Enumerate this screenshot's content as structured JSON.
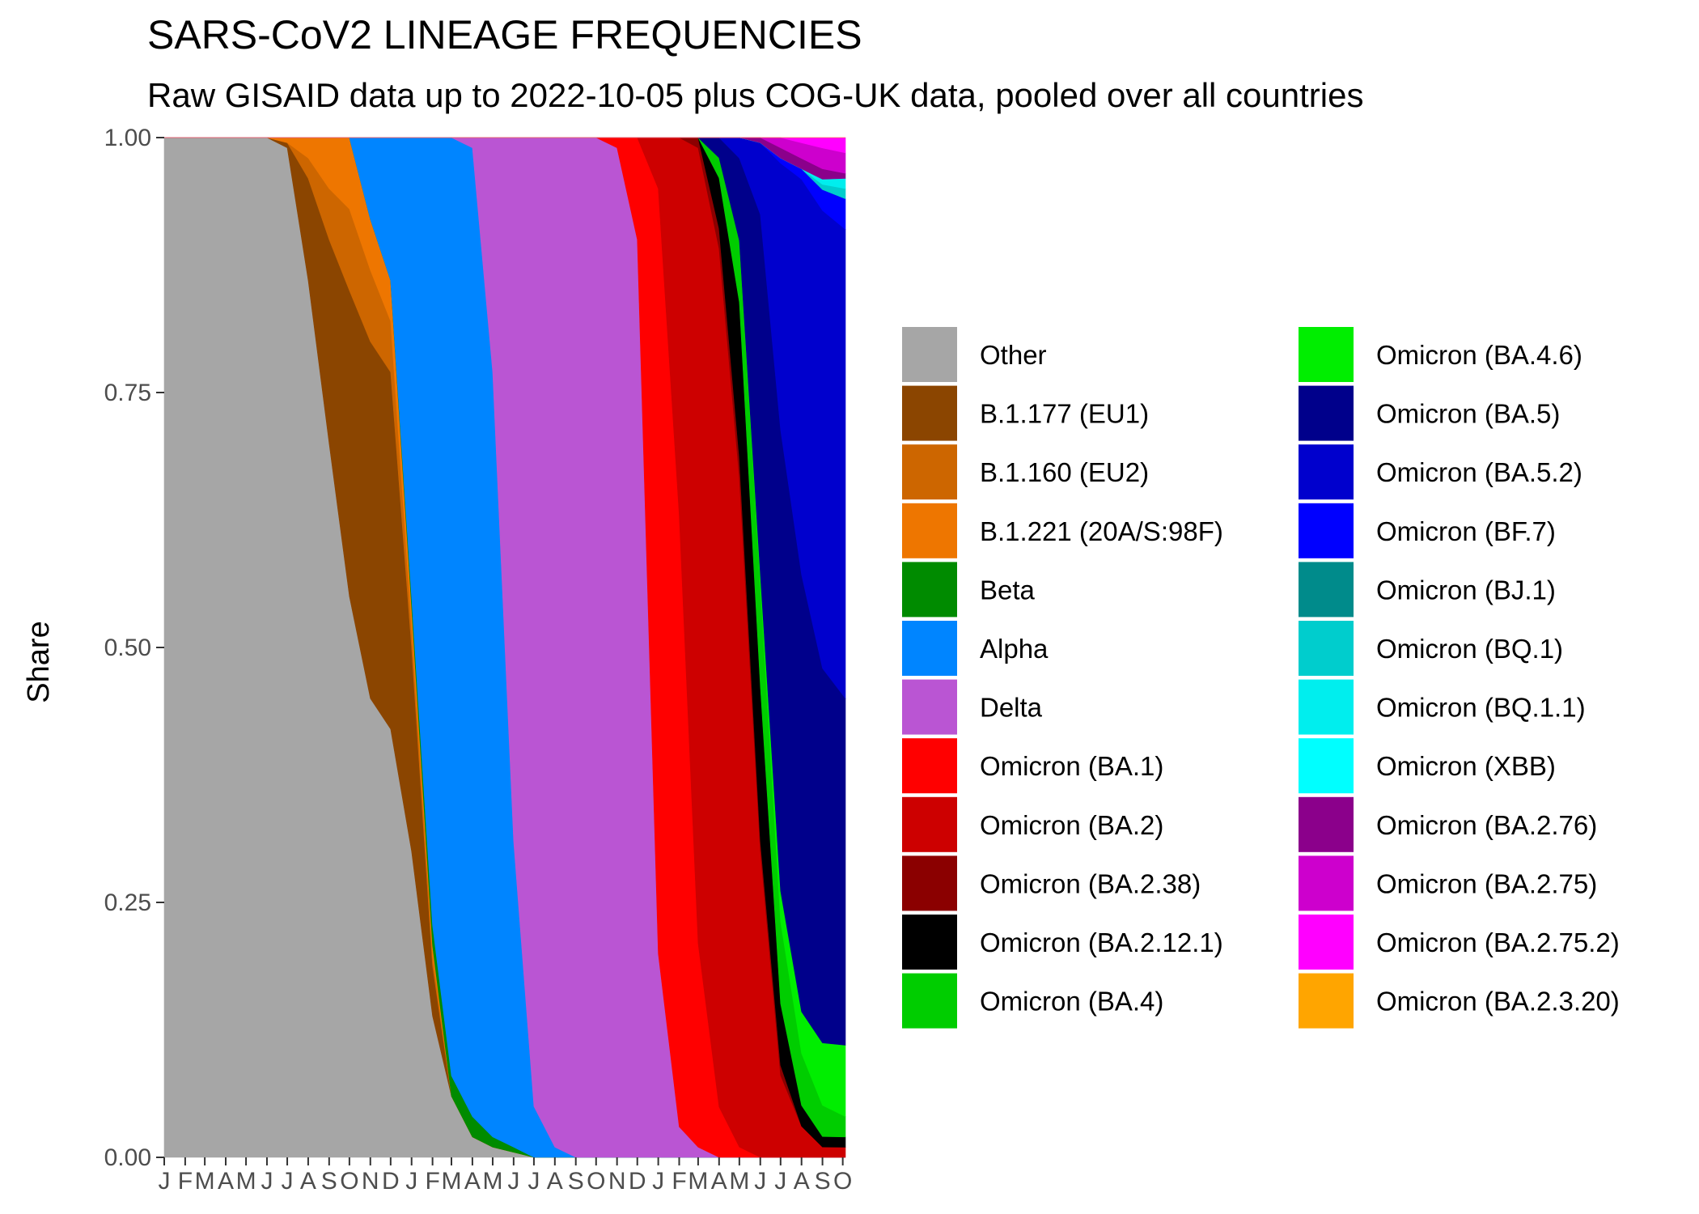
{
  "chart_data": {
    "type": "area",
    "stacked": true,
    "normalized": true,
    "title": "SARS-CoV2 LINEAGE FREQUENCIES",
    "subtitle": "Raw GISAID data up to 2022-10-05 plus COG-UK data, pooled over all countries",
    "xlabel": "",
    "ylabel": "Share",
    "ylim": [
      0,
      1
    ],
    "xlim": [
      "2020-01-01",
      "2022-10-05"
    ],
    "y_ticks": [
      "0.00",
      "0.25",
      "0.50",
      "0.75",
      "1.00"
    ],
    "x_ticks": [
      {
        "date": "2020-01-01",
        "label": "J"
      },
      {
        "date": "2020-02-01",
        "label": "F"
      },
      {
        "date": "2020-03-01",
        "label": "M"
      },
      {
        "date": "2020-04-01",
        "label": "A"
      },
      {
        "date": "2020-05-01",
        "label": "M"
      },
      {
        "date": "2020-06-01",
        "label": "J"
      },
      {
        "date": "2020-07-01",
        "label": "J"
      },
      {
        "date": "2020-08-01",
        "label": "A"
      },
      {
        "date": "2020-09-01",
        "label": "S"
      },
      {
        "date": "2020-10-01",
        "label": "O"
      },
      {
        "date": "2020-11-01",
        "label": "N"
      },
      {
        "date": "2020-12-01",
        "label": "D"
      },
      {
        "date": "2021-01-01",
        "label": "J"
      },
      {
        "date": "2021-02-01",
        "label": "F"
      },
      {
        "date": "2021-03-01",
        "label": "M"
      },
      {
        "date": "2021-04-01",
        "label": "A"
      },
      {
        "date": "2021-05-01",
        "label": "M"
      },
      {
        "date": "2021-06-01",
        "label": "J"
      },
      {
        "date": "2021-07-01",
        "label": "J"
      },
      {
        "date": "2021-08-01",
        "label": "A"
      },
      {
        "date": "2021-09-01",
        "label": "S"
      },
      {
        "date": "2021-10-01",
        "label": "O"
      },
      {
        "date": "2021-11-01",
        "label": "N"
      },
      {
        "date": "2021-12-01",
        "label": "D"
      },
      {
        "date": "2022-01-01",
        "label": "J"
      },
      {
        "date": "2022-02-01",
        "label": "F"
      },
      {
        "date": "2022-03-01",
        "label": "M"
      },
      {
        "date": "2022-04-01",
        "label": "A"
      },
      {
        "date": "2022-05-01",
        "label": "M"
      },
      {
        "date": "2022-06-01",
        "label": "J"
      },
      {
        "date": "2022-07-01",
        "label": "J"
      },
      {
        "date": "2022-08-01",
        "label": "A"
      },
      {
        "date": "2022-09-01",
        "label": "S"
      },
      {
        "date": "2022-10-01",
        "label": "O"
      }
    ],
    "legend_position": "right",
    "legend_columns": 2,
    "x": [
      "2020-01-01",
      "2020-02-01",
      "2020-03-01",
      "2020-04-01",
      "2020-05-01",
      "2020-06-01",
      "2020-07-01",
      "2020-08-01",
      "2020-09-01",
      "2020-10-01",
      "2020-11-01",
      "2020-12-01",
      "2021-01-01",
      "2021-02-01",
      "2021-03-01",
      "2021-04-01",
      "2021-05-01",
      "2021-06-01",
      "2021-07-01",
      "2021-08-01",
      "2021-09-01",
      "2021-10-01",
      "2021-11-01",
      "2021-12-01",
      "2022-01-01",
      "2022-02-01",
      "2022-03-01",
      "2022-04-01",
      "2022-05-01",
      "2022-06-01",
      "2022-07-01",
      "2022-08-01",
      "2022-09-01",
      "2022-10-01"
    ],
    "series": [
      {
        "name": "Other",
        "color": "#A6A6A6",
        "values": [
          1,
          1,
          1,
          1,
          1,
          1,
          0.99,
          0.86,
          0.7,
          0.55,
          0.45,
          0.42,
          0.3,
          0.14,
          0.06,
          0.02,
          0.01,
          0.005,
          0,
          0,
          0,
          0,
          0,
          0,
          0,
          0,
          0,
          0,
          0,
          0,
          0,
          0,
          0,
          0
        ]
      },
      {
        "name": "B.1.177 (EU1)",
        "color": "#8B4500",
        "values": [
          0,
          0,
          0,
          0,
          0,
          0,
          0.005,
          0.1,
          0.2,
          0.3,
          0.35,
          0.35,
          0.2,
          0.05,
          0,
          0,
          0,
          0,
          0,
          0,
          0,
          0,
          0,
          0,
          0,
          0,
          0,
          0,
          0,
          0,
          0,
          0,
          0,
          0
        ]
      },
      {
        "name": "B.1.160 (EU2)",
        "color": "#CD6600",
        "values": [
          0,
          0,
          0,
          0,
          0,
          0,
          0,
          0.02,
          0.05,
          0.08,
          0.07,
          0.05,
          0.02,
          0.01,
          0,
          0,
          0,
          0,
          0,
          0,
          0,
          0,
          0,
          0,
          0,
          0,
          0,
          0,
          0,
          0,
          0,
          0,
          0,
          0
        ]
      },
      {
        "name": "B.1.221 (20A/S:98F)",
        "color": "#EE7600",
        "values": [
          0,
          0,
          0,
          0,
          0,
          0,
          0.005,
          0.02,
          0.05,
          0.07,
          0.05,
          0.04,
          0.02,
          0.01,
          0,
          0,
          0,
          0,
          0,
          0,
          0,
          0,
          0,
          0,
          0,
          0,
          0,
          0,
          0,
          0,
          0,
          0,
          0,
          0
        ]
      },
      {
        "name": "Beta",
        "color": "#008B00",
        "values": [
          0,
          0,
          0,
          0,
          0,
          0,
          0,
          0,
          0,
          0,
          0,
          0,
          0.01,
          0.02,
          0.02,
          0.02,
          0.01,
          0.005,
          0,
          0,
          0,
          0,
          0,
          0,
          0,
          0,
          0,
          0,
          0,
          0,
          0,
          0,
          0,
          0
        ]
      },
      {
        "name": "Alpha",
        "color": "#0085FF",
        "values": [
          0,
          0,
          0,
          0,
          0,
          0,
          0,
          0,
          0,
          0,
          0.08,
          0.14,
          0.45,
          0.78,
          0.92,
          0.95,
          0.75,
          0.3,
          0.05,
          0.01,
          0,
          0,
          0,
          0,
          0,
          0,
          0,
          0,
          0,
          0,
          0,
          0,
          0,
          0
        ]
      },
      {
        "name": "Delta",
        "color": "#BA55D3",
        "values": [
          0,
          0,
          0,
          0,
          0,
          0,
          0,
          0,
          0,
          0,
          0,
          0,
          0,
          0,
          0,
          0.01,
          0.23,
          0.69,
          0.95,
          0.99,
          1,
          1,
          0.99,
          0.9,
          0.2,
          0.03,
          0.01,
          0,
          0,
          0,
          0,
          0,
          0,
          0
        ]
      },
      {
        "name": "Omicron (BA.1)",
        "color": "#FF0000",
        "values": [
          0,
          0,
          0,
          0,
          0,
          0,
          0,
          0,
          0,
          0,
          0,
          0,
          0,
          0,
          0,
          0,
          0,
          0,
          0,
          0,
          0,
          0,
          0.01,
          0.1,
          0.75,
          0.6,
          0.2,
          0.05,
          0.01,
          0,
          0,
          0,
          0,
          0
        ]
      },
      {
        "name": "Omicron (BA.2)",
        "color": "#CD0000",
        "values": [
          0,
          0,
          0,
          0,
          0,
          0,
          0,
          0,
          0,
          0,
          0,
          0,
          0,
          0,
          0,
          0,
          0,
          0,
          0,
          0,
          0,
          0,
          0,
          0,
          0.05,
          0.37,
          0.78,
          0.85,
          0.65,
          0.3,
          0.08,
          0.03,
          0.01,
          0.01
        ]
      },
      {
        "name": "Omicron (BA.2.38)",
        "color": "#8B0000",
        "values": [
          0,
          0,
          0,
          0,
          0,
          0,
          0,
          0,
          0,
          0,
          0,
          0,
          0,
          0,
          0,
          0,
          0,
          0,
          0,
          0,
          0,
          0,
          0,
          0,
          0,
          0,
          0.01,
          0.02,
          0.02,
          0.01,
          0.01,
          0,
          0,
          0
        ]
      },
      {
        "name": "Omicron (BA.2.12.1)",
        "color": "#000000",
        "values": [
          0,
          0,
          0,
          0,
          0,
          0,
          0,
          0,
          0,
          0,
          0,
          0,
          0,
          0,
          0,
          0,
          0,
          0,
          0,
          0,
          0,
          0,
          0,
          0,
          0,
          0,
          0,
          0.05,
          0.15,
          0.15,
          0.06,
          0.02,
          0.01,
          0.01
        ]
      },
      {
        "name": "Omicron (BA.4)",
        "color": "#00CD00",
        "values": [
          0,
          0,
          0,
          0,
          0,
          0,
          0,
          0,
          0,
          0,
          0,
          0,
          0,
          0,
          0,
          0,
          0,
          0,
          0,
          0,
          0,
          0,
          0,
          0,
          0,
          0,
          0,
          0.02,
          0.06,
          0.1,
          0.08,
          0.05,
          0.03,
          0.02
        ]
      },
      {
        "name": "Omicron (BA.4.6)",
        "color": "#00EE00",
        "values": [
          0,
          0,
          0,
          0,
          0,
          0,
          0,
          0,
          0,
          0,
          0,
          0,
          0,
          0,
          0,
          0,
          0,
          0,
          0,
          0,
          0,
          0,
          0,
          0,
          0,
          0,
          0,
          0,
          0,
          0.01,
          0.03,
          0.04,
          0.06,
          0.07
        ]
      },
      {
        "name": "Omicron (BA.5)",
        "color": "#00008B",
        "values": [
          0,
          0,
          0,
          0,
          0,
          0,
          0,
          0,
          0,
          0,
          0,
          0,
          0,
          0,
          0,
          0,
          0,
          0,
          0,
          0,
          0,
          0,
          0,
          0,
          0,
          0,
          0,
          0.02,
          0.08,
          0.35,
          0.45,
          0.42,
          0.36,
          0.34
        ]
      },
      {
        "name": "Omicron (BA.5.2)",
        "color": "#0000CD",
        "values": [
          0,
          0,
          0,
          0,
          0,
          0,
          0,
          0,
          0,
          0,
          0,
          0,
          0,
          0,
          0,
          0,
          0,
          0,
          0,
          0,
          0,
          0,
          0,
          0,
          0,
          0,
          0,
          0,
          0.02,
          0.07,
          0.26,
          0.38,
          0.44,
          0.46
        ]
      },
      {
        "name": "Omicron (BF.7)",
        "color": "#0000FF",
        "values": [
          0,
          0,
          0,
          0,
          0,
          0,
          0,
          0,
          0,
          0,
          0,
          0,
          0,
          0,
          0,
          0,
          0,
          0,
          0,
          0,
          0,
          0,
          0,
          0,
          0,
          0,
          0,
          0,
          0,
          0,
          0.005,
          0.01,
          0.02,
          0.03
        ]
      },
      {
        "name": "Omicron (BJ.1)",
        "color": "#008B8B",
        "values": [
          0,
          0,
          0,
          0,
          0,
          0,
          0,
          0,
          0,
          0,
          0,
          0,
          0,
          0,
          0,
          0,
          0,
          0,
          0,
          0,
          0,
          0,
          0,
          0,
          0,
          0,
          0,
          0,
          0,
          0,
          0,
          0,
          0,
          0
        ]
      },
      {
        "name": "Omicron (BQ.1)",
        "color": "#00CDCD",
        "values": [
          0,
          0,
          0,
          0,
          0,
          0,
          0,
          0,
          0,
          0,
          0,
          0,
          0,
          0,
          0,
          0,
          0,
          0,
          0,
          0,
          0,
          0,
          0,
          0,
          0,
          0,
          0,
          0,
          0,
          0,
          0,
          0,
          0.005,
          0.01
        ]
      },
      {
        "name": "Omicron (BQ.1.1)",
        "color": "#00EEEE",
        "values": [
          0,
          0,
          0,
          0,
          0,
          0,
          0,
          0,
          0,
          0,
          0,
          0,
          0,
          0,
          0,
          0,
          0,
          0,
          0,
          0,
          0,
          0,
          0,
          0,
          0,
          0,
          0,
          0,
          0,
          0,
          0,
          0,
          0.005,
          0.01
        ]
      },
      {
        "name": "Omicron (XBB)",
        "color": "#00FFFF",
        "values": [
          0,
          0,
          0,
          0,
          0,
          0,
          0,
          0,
          0,
          0,
          0,
          0,
          0,
          0,
          0,
          0,
          0,
          0,
          0,
          0,
          0,
          0,
          0,
          0,
          0,
          0,
          0,
          0,
          0,
          0,
          0,
          0,
          0,
          0
        ]
      },
      {
        "name": "Omicron (BA.2.76)",
        "color": "#8B008B",
        "values": [
          0,
          0,
          0,
          0,
          0,
          0,
          0,
          0,
          0,
          0,
          0,
          0,
          0,
          0,
          0,
          0,
          0,
          0,
          0,
          0,
          0,
          0,
          0,
          0,
          0,
          0,
          0,
          0,
          0,
          0.005,
          0.01,
          0.01,
          0.01,
          0.005
        ]
      },
      {
        "name": "Omicron (BA.2.75)",
        "color": "#CD00CD",
        "values": [
          0,
          0,
          0,
          0,
          0,
          0,
          0,
          0,
          0,
          0,
          0,
          0,
          0,
          0,
          0,
          0,
          0,
          0,
          0,
          0,
          0,
          0,
          0,
          0,
          0,
          0,
          0,
          0,
          0,
          0,
          0.01,
          0.015,
          0.02,
          0.02
        ]
      },
      {
        "name": "Omicron (BA.2.75.2)",
        "color": "#FF00FF",
        "values": [
          0,
          0,
          0,
          0,
          0,
          0,
          0,
          0,
          0,
          0,
          0,
          0,
          0,
          0,
          0,
          0,
          0,
          0,
          0,
          0,
          0,
          0,
          0,
          0,
          0,
          0,
          0,
          0,
          0,
          0,
          0,
          0.005,
          0.01,
          0.015
        ]
      },
      {
        "name": "Omicron (BA.2.3.20)",
        "color": "#FFA500",
        "values": [
          0,
          0,
          0,
          0,
          0,
          0,
          0,
          0,
          0,
          0,
          0,
          0,
          0,
          0,
          0,
          0,
          0,
          0,
          0,
          0,
          0,
          0,
          0,
          0,
          0,
          0,
          0,
          0,
          0,
          0,
          0,
          0,
          0,
          0
        ]
      }
    ]
  }
}
